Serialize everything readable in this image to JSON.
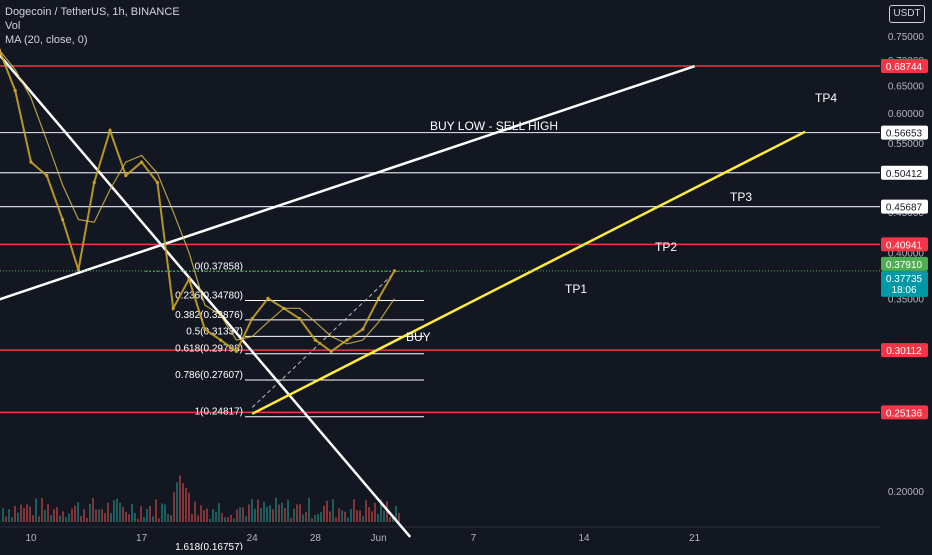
{
  "header": {
    "symbol": "Dogecoin / TetherUS, 1h, BINANCE",
    "volume_label": "Vol",
    "ma_label": "MA (20, close, 0)",
    "unit_button": "USDT"
  },
  "colors": {
    "background": "#131722",
    "candles": "#c9a227",
    "ma": "#e0c14c",
    "red_line": "#f23645",
    "white_line": "#ffffff",
    "yellow_line": "#ffeb3b",
    "green": "#4caf50",
    "blue": "#2196f3"
  },
  "chart_data": {
    "type": "line",
    "title": "Dogecoin / TetherUS, 1h, BINANCE",
    "y_scale": "log",
    "y_ticks": [
      "0.75000",
      "0.70000",
      "0.65000",
      "0.60000",
      "0.55000",
      "0.50000",
      "0.45000",
      "0.40000",
      "0.35000",
      "0.20000"
    ],
    "x_ticks": [
      "10",
      "17",
      "24",
      "28",
      "Jun",
      "7",
      "14",
      "21"
    ],
    "price_points": [
      {
        "x": "May 8",
        "y": 0.72
      },
      {
        "x": "May 9",
        "y": 0.64
      },
      {
        "x": "May 10",
        "y": 0.52
      },
      {
        "x": "May 11",
        "y": 0.5
      },
      {
        "x": "May 12",
        "y": 0.44
      },
      {
        "x": "May 13",
        "y": 0.38
      },
      {
        "x": "May 14",
        "y": 0.49
      },
      {
        "x": "May 15",
        "y": 0.57
      },
      {
        "x": "May 16",
        "y": 0.5
      },
      {
        "x": "May 17",
        "y": 0.52
      },
      {
        "x": "May 18",
        "y": 0.49
      },
      {
        "x": "May 19",
        "y": 0.34
      },
      {
        "x": "May 20",
        "y": 0.37
      },
      {
        "x": "May 21",
        "y": 0.32
      },
      {
        "x": "May 22",
        "y": 0.31
      },
      {
        "x": "May 23",
        "y": 0.3
      },
      {
        "x": "May 24",
        "y": 0.33
      },
      {
        "x": "May 25",
        "y": 0.35
      },
      {
        "x": "May 26",
        "y": 0.34
      },
      {
        "x": "May 27",
        "y": 0.33
      },
      {
        "x": "May 28",
        "y": 0.31
      },
      {
        "x": "May 29",
        "y": 0.3
      },
      {
        "x": "May 30",
        "y": 0.31
      },
      {
        "x": "May 31",
        "y": 0.32
      },
      {
        "x": "Jun 1",
        "y": 0.35
      },
      {
        "x": "Jun 2",
        "y": 0.3791
      }
    ],
    "horizontal_levels": [
      {
        "value": 0.68744,
        "label": "0.68744",
        "style": "red"
      },
      {
        "value": 0.56653,
        "label": "0.56653",
        "style": "white"
      },
      {
        "value": 0.50412,
        "label": "0.50412",
        "style": "white"
      },
      {
        "value": 0.45687,
        "label": "0.45687",
        "style": "white"
      },
      {
        "value": 0.40941,
        "label": "0.40941",
        "style": "red"
      },
      {
        "value": 0.30112,
        "label": "0.30112",
        "style": "red"
      },
      {
        "value": 0.25136,
        "label": "0.25136",
        "style": "red"
      }
    ],
    "current_price": {
      "value": 0.3791,
      "label": "0.37910"
    },
    "last_price": {
      "value": 0.37735,
      "label": "0.37735",
      "countdown": "18:06"
    },
    "fib_levels": [
      {
        "level": "0(0.37858)",
        "value": 0.37858
      },
      {
        "level": "0.236(0.34780)",
        "value": 0.3478
      },
      {
        "level": "0.382(0.32876)",
        "value": 0.32876
      },
      {
        "level": "0.5(0.31337)",
        "value": 0.31337
      },
      {
        "level": "0.618(0.29798)",
        "value": 0.29798
      },
      {
        "level": "0.786(0.27607)",
        "value": 0.27607
      },
      {
        "level": "1(0.24817)",
        "value": 0.24817
      },
      {
        "level": "1.618(0.16757)",
        "value": 0.16757
      }
    ],
    "annotations": [
      {
        "text": "BUY LOW - SELL HIGH"
      },
      {
        "text": "TP4"
      },
      {
        "text": "TP3"
      },
      {
        "text": "TP2"
      },
      {
        "text": "TP1"
      },
      {
        "text": "BUY"
      }
    ]
  }
}
